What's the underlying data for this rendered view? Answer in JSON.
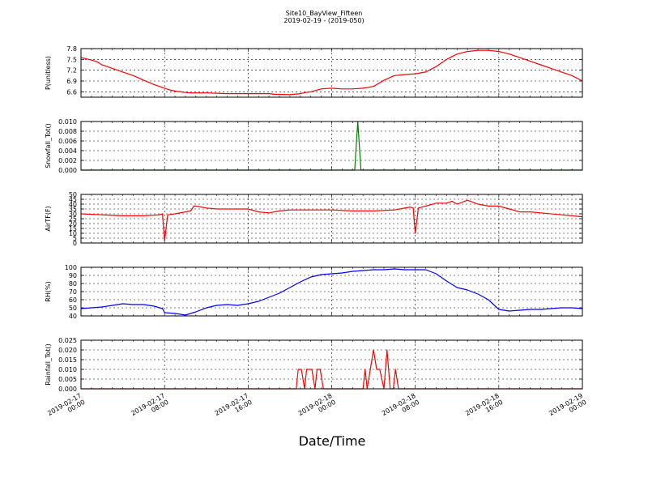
{
  "figure": {
    "title": "Site10_BayView_Fifteen",
    "subtitle": "2019-02-19 - (2019-050)",
    "xlabel": "Date/Time",
    "x_ticks": [
      {
        "line1": "2019-02-17",
        "line2": "00:00"
      },
      {
        "line1": "2019-02-17",
        "line2": "08:00"
      },
      {
        "line1": "2019-02-17",
        "line2": "16:00"
      },
      {
        "line1": "2019-02-18",
        "line2": "00:00"
      },
      {
        "line1": "2019-02-18",
        "line2": "08:00"
      },
      {
        "line1": "2019-02-18",
        "line2": "16:00"
      },
      {
        "line1": "2019-02-19",
        "line2": "00:00"
      }
    ]
  },
  "chart_data": [
    {
      "type": "line",
      "ylabel": "P(unitless)",
      "ylim": [
        6.45,
        7.8
      ],
      "yticks": [
        "6.6",
        "6.9",
        "7.2",
        "7.5",
        "7.8"
      ],
      "ytick_values": [
        6.6,
        6.9,
        7.2,
        7.5,
        7.8
      ],
      "xlim": [
        0,
        48
      ],
      "x_unit": "hours since 2019-02-17 00:00",
      "grid": true,
      "series": [
        {
          "color": "#ff0000",
          "x": [
            0,
            1,
            1.5,
            2,
            3,
            4,
            5,
            6,
            7,
            8,
            8.5,
            9,
            10,
            10.5,
            11,
            12,
            14,
            16,
            18,
            18.5,
            20,
            21,
            21.5,
            22,
            23,
            24,
            25,
            26,
            27,
            28,
            29,
            30,
            31,
            32,
            33,
            34,
            35,
            36,
            37,
            38,
            39,
            40,
            41,
            42,
            43,
            44,
            45,
            46,
            47,
            48
          ],
          "y": [
            7.55,
            7.48,
            7.44,
            7.35,
            7.25,
            7.15,
            7.05,
            6.92,
            6.8,
            6.7,
            6.65,
            6.62,
            6.58,
            6.57,
            6.57,
            6.57,
            6.55,
            6.55,
            6.55,
            6.53,
            6.52,
            6.55,
            6.58,
            6.6,
            6.68,
            6.7,
            6.68,
            6.68,
            6.7,
            6.75,
            6.92,
            7.05,
            7.08,
            7.1,
            7.15,
            7.3,
            7.5,
            7.65,
            7.72,
            7.75,
            7.75,
            7.72,
            7.65,
            7.55,
            7.45,
            7.35,
            7.25,
            7.15,
            7.05,
            6.9
          ]
        }
      ]
    },
    {
      "type": "line",
      "ylabel": "Snowfall_Tot()",
      "ylim": [
        0,
        0.01
      ],
      "yticks": [
        "0.000",
        "0.002",
        "0.004",
        "0.006",
        "0.008",
        "0.010"
      ],
      "ytick_values": [
        0,
        0.002,
        0.004,
        0.006,
        0.008,
        0.01
      ],
      "xlim": [
        0,
        48
      ],
      "grid": true,
      "series": [
        {
          "color": "#008000",
          "x": [
            0,
            26.2,
            26.5,
            26.8,
            48
          ],
          "y": [
            0,
            0,
            0.01,
            0,
            0
          ]
        }
      ]
    },
    {
      "type": "line",
      "ylabel": "AirTF(F)",
      "ylim": [
        0,
        50
      ],
      "yticks": [
        "0",
        "5",
        "10",
        "15",
        "20",
        "25",
        "30",
        "35",
        "40",
        "45",
        "50"
      ],
      "ytick_values": [
        0,
        5,
        10,
        15,
        20,
        25,
        30,
        35,
        40,
        45,
        50
      ],
      "xlim": [
        0,
        48
      ],
      "grid": true,
      "series": [
        {
          "color": "#ff0000",
          "x": [
            0,
            2,
            4,
            6,
            7.5,
            7.8,
            8,
            8.3,
            9,
            10,
            10.5,
            10.8,
            11,
            12,
            13,
            14,
            15,
            16,
            17,
            18,
            19,
            20,
            22,
            24,
            26,
            28,
            30,
            31.5,
            31.8,
            32,
            32.3,
            33,
            34,
            35,
            35.5,
            36,
            37,
            38,
            39,
            40,
            41,
            42,
            43,
            44,
            46,
            48
          ],
          "y": [
            30,
            29,
            28,
            28,
            29,
            30,
            2,
            29,
            30,
            32,
            33,
            38,
            38,
            36,
            35,
            35,
            35,
            35,
            32,
            31,
            33,
            34,
            34,
            34,
            33,
            33,
            34,
            37,
            36,
            10,
            36,
            38,
            41,
            41,
            43,
            40,
            44,
            40,
            38,
            38,
            35,
            32,
            32,
            31,
            29,
            27
          ]
        }
      ]
    },
    {
      "type": "line",
      "ylabel": "RH(%)",
      "ylim": [
        40,
        100
      ],
      "yticks": [
        "40",
        "50",
        "60",
        "70",
        "80",
        "90",
        "100"
      ],
      "ytick_values": [
        40,
        50,
        60,
        70,
        80,
        90,
        100
      ],
      "xlim": [
        0,
        48
      ],
      "grid": true,
      "series": [
        {
          "color": "#0000ff",
          "x": [
            0,
            1,
            2,
            3,
            4,
            5,
            6,
            7,
            7.8,
            8,
            9,
            10,
            11,
            12,
            13,
            14,
            15,
            16,
            17,
            18,
            19,
            20,
            21,
            22,
            23,
            24,
            25,
            26,
            27,
            28,
            29,
            30,
            31,
            32,
            33,
            34,
            35,
            36,
            37,
            38,
            39,
            40,
            41,
            42,
            43,
            44,
            45,
            46,
            47,
            48
          ],
          "y": [
            49,
            50,
            51,
            53,
            55,
            54,
            54,
            52,
            49,
            44,
            43,
            41,
            45,
            50,
            53,
            54,
            53,
            55,
            58,
            63,
            68,
            75,
            82,
            88,
            91,
            92,
            93,
            95,
            96,
            97,
            97,
            98,
            97,
            97,
            97,
            92,
            83,
            75,
            72,
            67,
            60,
            48,
            46,
            47,
            48,
            48,
            49,
            50,
            50,
            49
          ]
        }
      ]
    },
    {
      "type": "line",
      "ylabel": "Rainfall_Tot()",
      "ylim": [
        0,
        0.025
      ],
      "yticks": [
        "0.000",
        "0.005",
        "0.010",
        "0.015",
        "0.020",
        "0.025"
      ],
      "ytick_values": [
        0,
        0.005,
        0.01,
        0.015,
        0.02,
        0.025
      ],
      "xlim": [
        0,
        48
      ],
      "grid": true,
      "series": [
        {
          "color": "#ff0000",
          "x": [
            0,
            20.6,
            20.8,
            21.1,
            21.4,
            21.6,
            22.1,
            22.4,
            22.6,
            22.9,
            23.2,
            27.0,
            27.2,
            27.4,
            27.7,
            28.0,
            28.3,
            28.6,
            29.0,
            29.3,
            29.6,
            29.9,
            30.1,
            30.4,
            48
          ],
          "y": [
            0,
            0,
            0.01,
            0.01,
            0,
            0.01,
            0.01,
            0,
            0.01,
            0.01,
            0,
            0,
            0.01,
            0,
            0.01,
            0.02,
            0.01,
            0.01,
            0,
            0.02,
            0,
            0,
            0.01,
            0,
            0
          ]
        }
      ]
    }
  ]
}
